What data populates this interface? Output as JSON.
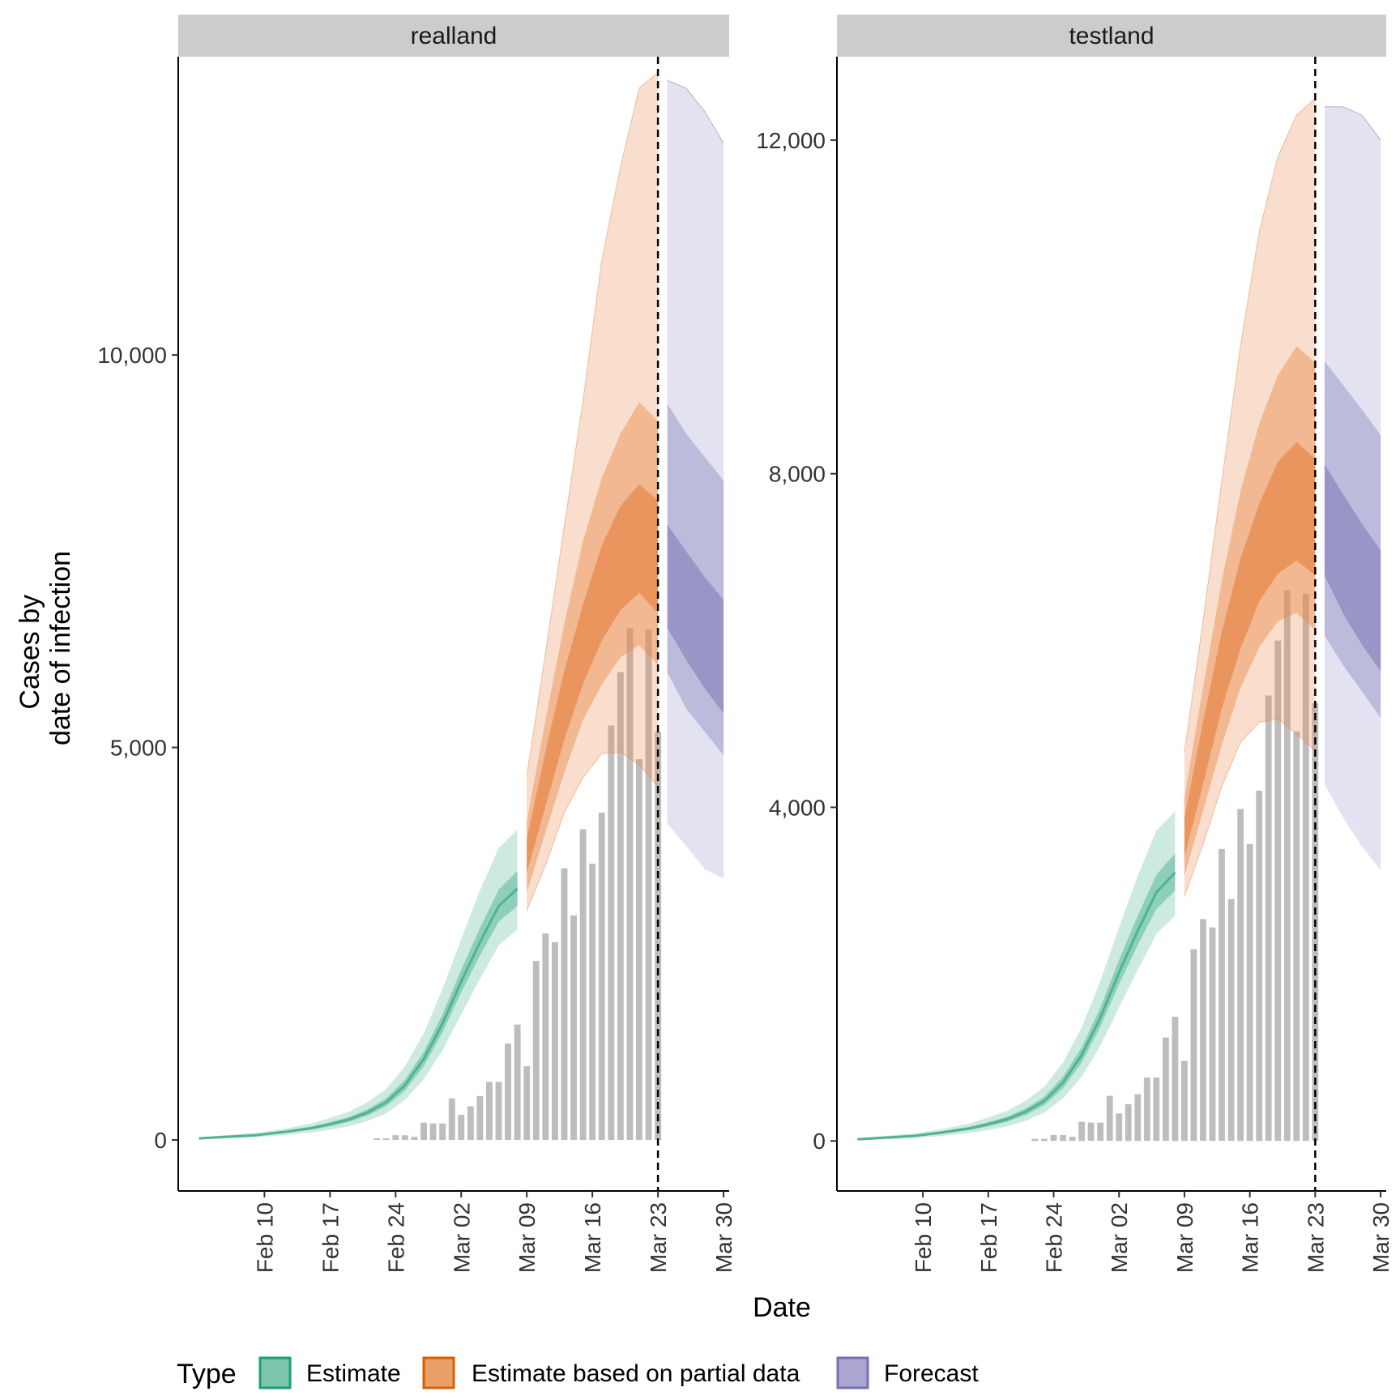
{
  "chart_data": {
    "type": "area",
    "xlabel": "Date",
    "ylabel": [
      "Cases by",
      "date of infection"
    ],
    "x_ticks": [
      "Feb 10",
      "Feb 17",
      "Feb 24",
      "Mar 02",
      "Mar 09",
      "Mar 16",
      "Mar 23",
      "Mar 30"
    ],
    "x_tick_days": [
      10,
      17,
      24,
      31,
      38,
      45,
      52,
      59
    ],
    "x_range_days": [
      0.8,
      59.6
    ],
    "legend": {
      "title": "Type",
      "position": "bottom",
      "entries": [
        {
          "label": "Estimate",
          "fill": "#7CC5AB",
          "stroke": "#1B9E77"
        },
        {
          "label": "Estimate based on partial data",
          "fill": "#E9A068",
          "stroke": "#D95F02"
        },
        {
          "label": "Forecast",
          "fill": "#ABA6D1",
          "stroke": "#7570B3"
        }
      ]
    },
    "colors": {
      "estimate": "#1B9E77",
      "partial": "#E0823E",
      "forecast": "#7570B3",
      "bars": "#BDBDBD",
      "strip": "#CCCCCC"
    },
    "grid": false,
    "panels": [
      {
        "title": "realland",
        "y_ticks": [
          0,
          5000,
          10000
        ],
        "y_tick_labels": [
          "0",
          "5,000",
          "10,000"
        ],
        "ylim": [
          -650,
          13800
        ],
        "vline_day": 52,
        "bars": {
          "days": [
            22,
            23,
            24,
            25,
            26,
            27,
            28,
            29,
            30,
            31,
            32,
            33,
            34,
            35,
            36,
            37,
            38,
            39,
            40,
            41,
            42,
            43,
            44,
            45,
            46,
            47,
            48,
            49,
            50,
            51,
            52
          ],
          "values": [
            20,
            20,
            60,
            60,
            40,
            220,
            210,
            210,
            530,
            320,
            430,
            560,
            740,
            740,
            1230,
            1470,
            940,
            2280,
            2630,
            2520,
            3460,
            2860,
            3960,
            3520,
            4170,
            5280,
            5960,
            6520,
            4850,
            6500,
            5200
          ]
        },
        "estimate": {
          "days": [
            3,
            6,
            9,
            12,
            15,
            17,
            19,
            21,
            23,
            25,
            27,
            29,
            31,
            33,
            35,
            37
          ],
          "median": [
            20,
            40,
            60,
            100,
            150,
            200,
            260,
            350,
            480,
            700,
            1030,
            1480,
            2020,
            2520,
            2980,
            3200
          ],
          "inner": {
            "lower": [
              15,
              32,
              50,
              85,
              130,
              175,
              230,
              310,
              430,
              630,
              940,
              1370,
              1880,
              2350,
              2780,
              2980
            ],
            "upper": [
              25,
              48,
              70,
              115,
              170,
              225,
              290,
              390,
              530,
              770,
              1120,
              1600,
              2170,
              2700,
              3190,
              3430
            ]
          },
          "outer": {
            "lower": [
              8,
              20,
              35,
              60,
              95,
              130,
              175,
              240,
              340,
              510,
              770,
              1140,
              1600,
              2050,
              2480,
              2680
            ],
            "upper": [
              35,
              62,
              90,
              140,
              210,
              280,
              360,
              480,
              650,
              940,
              1360,
              1920,
              2560,
              3180,
              3720,
              3950
            ]
          }
        },
        "partial": {
          "days": [
            38,
            40,
            42,
            44,
            46,
            48,
            50,
            52
          ],
          "median": [
            3620,
            4620,
            5550,
            6320,
            6960,
            7520,
            7830,
            7580
          ],
          "q30": {
            "lower": [
              3400,
              4250,
              5100,
              5810,
              6360,
              6750,
              6970,
              6710
            ],
            "upper": [
              3830,
              4950,
              5980,
              6820,
              7570,
              8080,
              8350,
              8150
            ]
          },
          "q60": {
            "lower": [
              3150,
              3920,
              4680,
              5350,
              5800,
              6150,
              6300,
              6050
            ],
            "upper": [
              4060,
              5350,
              6580,
              7630,
              8430,
              9000,
              9400,
              9160
            ]
          },
          "q90": {
            "lower": [
              2920,
              3500,
              4170,
              4620,
              4920,
              4940,
              4780,
              4500
            ],
            "upper": [
              4640,
              6200,
              7820,
              9420,
              11200,
              12400,
              13400,
              13600
            ]
          }
        },
        "forecast": {
          "days": [
            53,
            55,
            57,
            59
          ],
          "q30": {
            "lower": [
              6520,
              6120,
              5750,
              5430
            ],
            "upper": [
              7840,
              7500,
              7170,
              6880
            ]
          },
          "q60": {
            "lower": [
              5960,
              5500,
              5200,
              4900
            ],
            "upper": [
              9380,
              9000,
              8700,
              8400
            ]
          },
          "q90": {
            "lower": [
              4030,
              3750,
              3450,
              3330
            ],
            "upper": [
              13500,
              13400,
              13100,
              12700
            ]
          }
        }
      },
      {
        "title": "testland",
        "y_ticks": [
          0,
          4000,
          8000,
          12000
        ],
        "y_tick_labels": [
          "0",
          "4,000",
          "8,000",
          "12,000"
        ],
        "ylim": [
          -600,
          13000
        ],
        "vline_day": 52,
        "bars": {
          "days": [
            22,
            23,
            24,
            25,
            26,
            27,
            28,
            29,
            30,
            31,
            32,
            33,
            34,
            35,
            36,
            37,
            38,
            39,
            40,
            41,
            42,
            43,
            44,
            45,
            46,
            47,
            48,
            49,
            50,
            51,
            52
          ],
          "values": [
            25,
            25,
            70,
            70,
            50,
            230,
            220,
            220,
            540,
            330,
            440,
            560,
            760,
            760,
            1240,
            1490,
            960,
            2300,
            2660,
            2560,
            3500,
            2900,
            3980,
            3560,
            4200,
            5340,
            6000,
            6600,
            4910,
            6560,
            5250
          ]
        },
        "estimate": {
          "days": [
            3,
            6,
            9,
            12,
            15,
            17,
            19,
            21,
            23,
            25,
            27,
            29,
            31,
            33,
            35,
            37
          ],
          "median": [
            20,
            40,
            60,
            100,
            150,
            200,
            260,
            350,
            480,
            700,
            1030,
            1480,
            2020,
            2520,
            2980,
            3220
          ],
          "inner": {
            "lower": [
              15,
              32,
              50,
              85,
              130,
              175,
              230,
              310,
              430,
              630,
              940,
              1370,
              1880,
              2350,
              2780,
              3000
            ],
            "upper": [
              25,
              48,
              70,
              115,
              170,
              225,
              290,
              390,
              530,
              770,
              1120,
              1600,
              2170,
              2700,
              3190,
              3450
            ]
          },
          "outer": {
            "lower": [
              8,
              20,
              35,
              60,
              95,
              130,
              175,
              240,
              340,
              510,
              770,
              1140,
              1600,
              2050,
              2480,
              2700
            ],
            "upper": [
              35,
              62,
              90,
              140,
              210,
              280,
              360,
              480,
              650,
              940,
              1360,
              1920,
              2560,
              3180,
              3720,
              3950
            ]
          }
        },
        "partial": {
          "days": [
            38,
            40,
            42,
            44,
            46,
            48,
            50,
            52
          ],
          "median": [
            3650,
            4650,
            5650,
            6450,
            7080,
            7550,
            7800,
            7620
          ],
          "q30": {
            "lower": [
              3400,
              4280,
              5190,
              5900,
              6470,
              6800,
              6960,
              6780
            ],
            "upper": [
              3870,
              5030,
              6110,
              6980,
              7640,
              8140,
              8380,
              8180
            ]
          },
          "q60": {
            "lower": [
              3180,
              3960,
              4750,
              5430,
              5920,
              6230,
              6330,
              6130
            ],
            "upper": [
              4120,
              5440,
              6720,
              7790,
              8600,
              9180,
              9530,
              9330
            ]
          },
          "q90": {
            "lower": [
              2930,
              3560,
              4250,
              4780,
              5020,
              5060,
              4880,
              4680
            ],
            "upper": [
              4660,
              6240,
              7920,
              9530,
              10900,
              11800,
              12300,
              12500
            ]
          }
        },
        "forecast": {
          "days": [
            53,
            55,
            57,
            59
          ],
          "q30": {
            "lower": [
              6780,
              6320,
              5950,
              5630
            ],
            "upper": [
              8110,
              7750,
              7400,
              7080
            ]
          },
          "q60": {
            "lower": [
              6060,
              5700,
              5390,
              5070
            ],
            "upper": [
              9350,
              9060,
              8770,
              8460
            ]
          },
          "q90": {
            "lower": [
              4280,
              3870,
              3530,
              3250
            ],
            "upper": [
              12400,
              12400,
              12300,
              12000
            ]
          }
        }
      }
    ]
  }
}
